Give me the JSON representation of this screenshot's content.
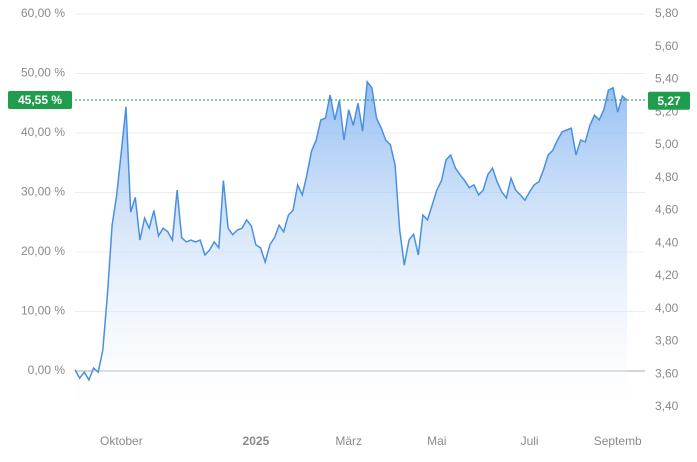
{
  "chart_data": {
    "type": "line",
    "series": [
      {
        "color": "#4a90e2",
        "values": [
          0.2,
          -1.2,
          -0.2,
          -1.5,
          0.5,
          -0.2,
          3.5,
          13,
          24.5,
          29.6,
          37,
          44.4,
          26.7,
          29.2,
          22,
          25.7,
          24,
          27,
          22.7,
          24,
          23.4,
          22,
          30.4,
          22.4,
          21.7,
          22,
          21.7,
          22,
          19.5,
          20.3,
          21.7,
          20.7,
          32,
          24,
          22.9,
          23.7,
          24,
          25.4,
          24.4,
          21.2,
          20.7,
          18.3,
          21.2,
          22.4,
          24.5,
          23.4,
          26.2,
          27,
          31.3,
          29.6,
          33,
          37,
          38.8,
          42.2,
          42.5,
          46.4,
          42.2,
          45.5,
          38.8,
          43.9,
          41.3,
          45,
          40.3,
          48.6,
          47.6,
          42.5,
          40.8,
          38.8,
          38,
          34.6,
          23.7,
          17.8,
          22,
          23,
          19.5,
          26.2,
          25.4,
          27.9,
          30.4,
          32,
          35.5,
          36.3,
          34.1,
          33,
          32,
          30.8,
          31.3,
          29.6,
          30.4,
          33,
          34.1,
          31.8,
          30.1,
          29.1,
          32.4,
          30.4,
          29.6,
          28.7,
          30.1,
          31.3,
          31.8,
          33.8,
          36.3,
          37.1,
          38.8,
          40.2,
          40.5,
          40.8,
          36.3,
          38.8,
          38.5,
          41.3,
          43,
          42.2,
          43.9,
          47.2,
          47.6,
          43.5,
          46.2,
          45.5
        ]
      }
    ],
    "xlim": [
      0,
      119
    ],
    "xticks": [
      {
        "value": 10,
        "label": "Oktober"
      },
      {
        "value": 39,
        "label": "2025"
      },
      {
        "value": 59,
        "label": "März"
      },
      {
        "value": 78,
        "label": "Mai"
      },
      {
        "value": 98,
        "label": "Juli"
      },
      {
        "value": 117,
        "label": "Septemb"
      }
    ],
    "ylim": [
      -6.05,
      60
    ],
    "yticks": [
      {
        "value": 0,
        "label": "0,00 %"
      },
      {
        "value": 10,
        "label": "10,00 %"
      },
      {
        "value": 20,
        "label": "20,00 %"
      },
      {
        "value": 30,
        "label": "30,00 %"
      },
      {
        "value": 40,
        "label": "40,00 %"
      },
      {
        "value": 50,
        "label": "50,00 %"
      },
      {
        "value": 60,
        "label": "60,00 %"
      }
    ],
    "y2lim": [
      3.4,
      5.8
    ],
    "y2ticks": [
      {
        "value": 3.4,
        "label": "3,40"
      },
      {
        "value": 3.6,
        "label": "3,60"
      },
      {
        "value": 3.8,
        "label": "3,80"
      },
      {
        "value": 4.0,
        "label": "4,00"
      },
      {
        "value": 4.2,
        "label": "4,20"
      },
      {
        "value": 4.4,
        "label": "4,40"
      },
      {
        "value": 4.6,
        "label": "4,60"
      },
      {
        "value": 4.8,
        "label": "4,80"
      },
      {
        "value": 5.0,
        "label": "5,00"
      },
      {
        "value": 5.2,
        "label": "5,20"
      },
      {
        "value": 5.4,
        "label": "5,40"
      },
      {
        "value": 5.6,
        "label": "5,60"
      },
      {
        "value": 5.8,
        "label": "5,80"
      }
    ],
    "current_percent": {
      "value": 45.55,
      "label": "45,55 %"
    },
    "current_price": {
      "value": 5.27,
      "label": "5,27"
    },
    "badge_color": "#1f9d4c",
    "grid": true
  }
}
